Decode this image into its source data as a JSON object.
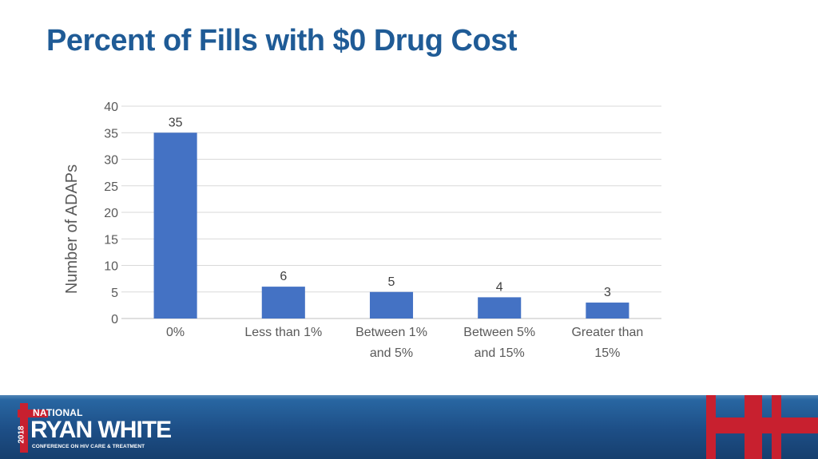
{
  "slide": {
    "title": "Percent of Fills with $0 Drug Cost"
  },
  "chart_data": {
    "type": "bar",
    "title": "",
    "xlabel": "",
    "ylabel": "Number of ADAPs",
    "categories": [
      [
        "0%"
      ],
      [
        "Less than 1%"
      ],
      [
        "Between 1%",
        "and 5%"
      ],
      [
        "Between 5%",
        "and 15%"
      ],
      [
        "Greater than",
        "15%"
      ]
    ],
    "values": [
      35,
      6,
      5,
      4,
      3
    ],
    "ylim": [
      0,
      40
    ],
    "yticks": [
      0,
      5,
      10,
      15,
      20,
      25,
      30,
      35,
      40
    ],
    "grid": true,
    "legend": "none",
    "bar_color": "#4472c4"
  },
  "footer": {
    "year": "2018",
    "national": "NATIONAL",
    "name": "RYAN WHITE",
    "subtitle": "CONFERENCE ON HIV CARE & TREATMENT",
    "accent_color": "#c8202f"
  }
}
